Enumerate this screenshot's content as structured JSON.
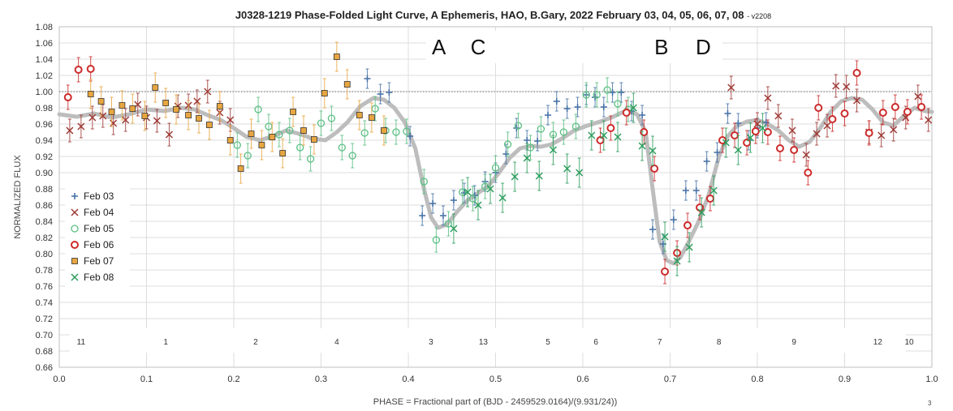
{
  "chart_data": {
    "type": "scatter",
    "title": "J0328-1219 Phase-Folded Light Curve, A Ephemeris, HAO, B.Gary, 2022 February 03, 04, 05, 06, 07, 08",
    "title_suffix": "- v2208",
    "xlabel": "PHASE = Fractional part of (BJD - 2459529.0164)/(9.931/24))",
    "ylabel": "NORMALIZED FLUX",
    "xlim": [
      0.0,
      1.0
    ],
    "ylim": [
      0.66,
      1.08
    ],
    "xticks": [
      "0.0",
      "0.1",
      "0.2",
      "0.3",
      "0.4",
      "0.5",
      "0.6",
      "0.7",
      "0.8",
      "0.9",
      "1.0"
    ],
    "yticks": [
      "0.66",
      "0.68",
      "0.70",
      "0.72",
      "0.74",
      "0.76",
      "0.78",
      "0.80",
      "0.82",
      "0.84",
      "0.86",
      "0.88",
      "0.90",
      "0.92",
      "0.94",
      "0.96",
      "0.98",
      "1.00",
      "1.02",
      "1.04",
      "1.06",
      "1.08"
    ],
    "grid": true,
    "legend_position": "left",
    "reference_line": 1.0,
    "dip_labels": [
      {
        "text": "A",
        "x": 0.435,
        "y": 1.055
      },
      {
        "text": "C",
        "x": 0.48,
        "y": 1.055
      },
      {
        "text": "B",
        "x": 0.69,
        "y": 1.055
      },
      {
        "text": "D",
        "x": 0.738,
        "y": 1.055
      }
    ],
    "segment_labels": [
      {
        "text": "11",
        "x": 0.025
      },
      {
        "text": "1",
        "x": 0.122
      },
      {
        "text": "2",
        "x": 0.225
      },
      {
        "text": "4",
        "x": 0.318
      },
      {
        "text": "3",
        "x": 0.426
      },
      {
        "text": "13",
        "x": 0.486
      },
      {
        "text": "5",
        "x": 0.56
      },
      {
        "text": "6",
        "x": 0.615
      },
      {
        "text": "7",
        "x": 0.688
      },
      {
        "text": "8",
        "x": 0.756
      },
      {
        "text": "9",
        "x": 0.842
      },
      {
        "text": "12",
        "x": 0.938
      },
      {
        "text": "10",
        "x": 0.974
      }
    ],
    "series": [
      {
        "name": "Feb 03",
        "marker": "plus",
        "color": "#4a74a8",
        "points": [
          [
            0.353,
            1.016
          ],
          [
            0.368,
            0.997
          ],
          [
            0.378,
            0.999
          ],
          [
            0.402,
            0.945
          ],
          [
            0.416,
            0.847
          ],
          [
            0.428,
            0.862
          ],
          [
            0.44,
            0.847
          ],
          [
            0.452,
            0.866
          ],
          [
            0.464,
            0.875
          ],
          [
            0.476,
            0.872
          ],
          [
            0.488,
            0.889
          ],
          [
            0.5,
            0.9
          ],
          [
            0.512,
            0.923
          ],
          [
            0.524,
            0.955
          ],
          [
            0.536,
            0.94
          ],
          [
            0.548,
            0.939
          ],
          [
            0.56,
            0.971
          ],
          [
            0.57,
            0.988
          ],
          [
            0.582,
            0.979
          ],
          [
            0.594,
            0.981
          ],
          [
            0.604,
            0.996
          ],
          [
            0.614,
            0.993
          ],
          [
            0.624,
            0.981
          ],
          [
            0.634,
            0.999
          ],
          [
            0.644,
            0.999
          ],
          [
            0.656,
            0.976
          ],
          [
            0.668,
            0.971
          ],
          [
            0.68,
            0.83
          ],
          [
            0.692,
            0.812
          ],
          [
            0.704,
            0.842
          ],
          [
            0.718,
            0.878
          ],
          [
            0.73,
            0.878
          ],
          [
            0.742,
            0.914
          ],
          [
            0.754,
            0.925
          ],
          [
            0.766,
            0.973
          ],
          [
            0.778,
            0.961
          ],
          [
            0.79,
            0.94
          ],
          [
            0.8,
            0.955
          ],
          [
            0.81,
            0.962
          ]
        ],
        "err": 0.012
      },
      {
        "name": "Feb 04",
        "marker": "x",
        "color": "#9e3a36",
        "points": [
          [
            0.012,
            0.952
          ],
          [
            0.025,
            0.957
          ],
          [
            0.038,
            0.968
          ],
          [
            0.05,
            0.97
          ],
          [
            0.062,
            0.961
          ],
          [
            0.076,
            0.965
          ],
          [
            0.09,
            0.984
          ],
          [
            0.1,
            0.968
          ],
          [
            0.112,
            0.964
          ],
          [
            0.126,
            0.947
          ],
          [
            0.136,
            0.982
          ],
          [
            0.148,
            0.983
          ],
          [
            0.158,
            0.988
          ],
          [
            0.17,
            1.0
          ],
          [
            0.184,
            0.974
          ],
          [
            0.196,
            0.965
          ],
          [
            0.77,
            1.005
          ],
          [
            0.8,
            0.96
          ],
          [
            0.812,
            0.992
          ],
          [
            0.824,
            0.97
          ],
          [
            0.84,
            0.952
          ],
          [
            0.856,
            0.922
          ],
          [
            0.868,
            0.948
          ],
          [
            0.88,
            0.958
          ],
          [
            0.89,
            1.007
          ],
          [
            0.902,
            1.006
          ],
          [
            0.914,
            0.989
          ],
          [
            0.928,
            0.95
          ],
          [
            0.942,
            0.946
          ],
          [
            0.956,
            0.953
          ],
          [
            0.97,
            0.968
          ],
          [
            0.984,
            0.994
          ],
          [
            0.996,
            0.965
          ]
        ],
        "err": 0.014
      },
      {
        "name": "Feb 05",
        "marker": "circle",
        "color": "#5cbf84",
        "points": [
          [
            0.204,
            0.934
          ],
          [
            0.216,
            0.921
          ],
          [
            0.228,
            0.978
          ],
          [
            0.24,
            0.957
          ],
          [
            0.252,
            0.947
          ],
          [
            0.264,
            0.952
          ],
          [
            0.276,
            0.931
          ],
          [
            0.288,
            0.917
          ],
          [
            0.3,
            0.961
          ],
          [
            0.312,
            0.967
          ],
          [
            0.324,
            0.931
          ],
          [
            0.336,
            0.921
          ],
          [
            0.35,
            0.949
          ],
          [
            0.362,
            0.979
          ],
          [
            0.374,
            0.952
          ],
          [
            0.386,
            0.95
          ],
          [
            0.398,
            0.951
          ],
          [
            0.418,
            0.889
          ],
          [
            0.432,
            0.817
          ],
          [
            0.446,
            0.837
          ],
          [
            0.462,
            0.876
          ],
          [
            0.474,
            0.868
          ],
          [
            0.488,
            0.883
          ],
          [
            0.5,
            0.906
          ],
          [
            0.514,
            0.935
          ],
          [
            0.526,
            0.958
          ],
          [
            0.54,
            0.931
          ],
          [
            0.552,
            0.954
          ],
          [
            0.566,
            0.947
          ],
          [
            0.578,
            0.95
          ],
          [
            0.592,
            0.957
          ],
          [
            0.604,
            0.996
          ],
          [
            0.616,
            0.996
          ],
          [
            0.628,
            1.002
          ],
          [
            0.64,
            0.985
          ],
          [
            0.652,
            0.978
          ]
        ],
        "err": 0.015
      },
      {
        "name": "Feb 06",
        "marker": "ring",
        "color": "#cc2b2b",
        "points": [
          [
            0.01,
            0.993
          ],
          [
            0.022,
            1.027
          ],
          [
            0.036,
            1.028
          ],
          [
            0.62,
            0.94
          ],
          [
            0.632,
            0.955
          ],
          [
            0.65,
            0.974
          ],
          [
            0.67,
            0.95
          ],
          [
            0.682,
            0.905
          ],
          [
            0.694,
            0.778
          ],
          [
            0.708,
            0.801
          ],
          [
            0.72,
            0.835
          ],
          [
            0.734,
            0.857
          ],
          [
            0.746,
            0.868
          ],
          [
            0.76,
            0.94
          ],
          [
            0.774,
            0.946
          ],
          [
            0.788,
            0.937
          ],
          [
            0.798,
            0.951
          ],
          [
            0.812,
            0.95
          ],
          [
            0.826,
            0.93
          ],
          [
            0.842,
            0.928
          ],
          [
            0.858,
            0.9
          ],
          [
            0.87,
            0.98
          ],
          [
            0.886,
            0.966
          ],
          [
            0.9,
            0.973
          ],
          [
            0.914,
            1.023
          ],
          [
            0.928,
            0.949
          ],
          [
            0.944,
            0.974
          ],
          [
            0.958,
            0.981
          ],
          [
            0.972,
            0.975
          ],
          [
            0.988,
            0.981
          ]
        ],
        "err": 0.015
      },
      {
        "name": "Feb 07",
        "marker": "square",
        "color": "#e8a640",
        "points": [
          [
            0.036,
            0.997
          ],
          [
            0.048,
            0.988
          ],
          [
            0.06,
            0.975
          ],
          [
            0.072,
            0.983
          ],
          [
            0.084,
            0.979
          ],
          [
            0.098,
            0.97
          ],
          [
            0.11,
            1.005
          ],
          [
            0.122,
            0.986
          ],
          [
            0.134,
            0.978
          ],
          [
            0.148,
            0.971
          ],
          [
            0.16,
            0.967
          ],
          [
            0.172,
            0.959
          ],
          [
            0.184,
            0.982
          ],
          [
            0.196,
            0.94
          ],
          [
            0.208,
            0.905
          ],
          [
            0.22,
            0.948
          ],
          [
            0.232,
            0.934
          ],
          [
            0.244,
            0.944
          ],
          [
            0.256,
            0.924
          ],
          [
            0.268,
            0.975
          ],
          [
            0.28,
            0.952
          ],
          [
            0.292,
            0.941
          ],
          [
            0.304,
            0.998
          ],
          [
            0.318,
            1.043
          ],
          [
            0.33,
            1.009
          ],
          [
            0.344,
            0.971
          ],
          [
            0.358,
            0.968
          ],
          [
            0.372,
            0.952
          ]
        ],
        "err": 0.018
      },
      {
        "name": "Feb 08",
        "marker": "x",
        "color": "#2e9e5e",
        "points": [
          [
            0.452,
            0.831
          ],
          [
            0.468,
            0.876
          ],
          [
            0.48,
            0.86
          ],
          [
            0.494,
            0.88
          ],
          [
            0.508,
            0.869
          ],
          [
            0.522,
            0.895
          ],
          [
            0.536,
            0.918
          ],
          [
            0.55,
            0.896
          ],
          [
            0.566,
            0.928
          ],
          [
            0.582,
            0.905
          ],
          [
            0.596,
            0.9
          ],
          [
            0.61,
            0.946
          ],
          [
            0.624,
            0.946
          ],
          [
            0.64,
            0.944
          ],
          [
            0.658,
            0.98
          ],
          [
            0.668,
            0.933
          ],
          [
            0.68,
            0.927
          ],
          [
            0.694,
            0.821
          ],
          [
            0.708,
            0.791
          ],
          [
            0.722,
            0.808
          ],
          [
            0.736,
            0.851
          ],
          [
            0.75,
            0.878
          ],
          [
            0.764,
            0.937
          ],
          [
            0.778,
            0.928
          ],
          [
            0.792,
            0.943
          ],
          [
            0.806,
            0.955
          ]
        ],
        "err": 0.018
      }
    ],
    "model_curve": [
      [
        0.0,
        0.972
      ],
      [
        0.02,
        0.969
      ],
      [
        0.04,
        0.973
      ],
      [
        0.06,
        0.968
      ],
      [
        0.08,
        0.972
      ],
      [
        0.1,
        0.978
      ],
      [
        0.12,
        0.976
      ],
      [
        0.14,
        0.98
      ],
      [
        0.155,
        0.978
      ],
      [
        0.17,
        0.971
      ],
      [
        0.185,
        0.965
      ],
      [
        0.2,
        0.955
      ],
      [
        0.215,
        0.944
      ],
      [
        0.23,
        0.94
      ],
      [
        0.245,
        0.945
      ],
      [
        0.26,
        0.952
      ],
      [
        0.275,
        0.948
      ],
      [
        0.29,
        0.942
      ],
      [
        0.305,
        0.94
      ],
      [
        0.318,
        0.95
      ],
      [
        0.33,
        0.962
      ],
      [
        0.345,
        0.982
      ],
      [
        0.36,
        0.992
      ],
      [
        0.372,
        0.99
      ],
      [
        0.384,
        0.98
      ],
      [
        0.396,
        0.962
      ],
      [
        0.408,
        0.93
      ],
      [
        0.418,
        0.88
      ],
      [
        0.426,
        0.845
      ],
      [
        0.434,
        0.832
      ],
      [
        0.444,
        0.836
      ],
      [
        0.456,
        0.852
      ],
      [
        0.468,
        0.866
      ],
      [
        0.48,
        0.875
      ],
      [
        0.492,
        0.884
      ],
      [
        0.504,
        0.9
      ],
      [
        0.516,
        0.918
      ],
      [
        0.528,
        0.93
      ],
      [
        0.54,
        0.933
      ],
      [
        0.552,
        0.932
      ],
      [
        0.564,
        0.935
      ],
      [
        0.576,
        0.942
      ],
      [
        0.59,
        0.952
      ],
      [
        0.605,
        0.958
      ],
      [
        0.62,
        0.963
      ],
      [
        0.635,
        0.969
      ],
      [
        0.65,
        0.977
      ],
      [
        0.662,
        0.972
      ],
      [
        0.672,
        0.95
      ],
      [
        0.68,
        0.88
      ],
      [
        0.688,
        0.815
      ],
      [
        0.696,
        0.792
      ],
      [
        0.704,
        0.788
      ],
      [
        0.712,
        0.796
      ],
      [
        0.72,
        0.812
      ],
      [
        0.732,
        0.838
      ],
      [
        0.744,
        0.872
      ],
      [
        0.756,
        0.92
      ],
      [
        0.766,
        0.945
      ],
      [
        0.776,
        0.957
      ],
      [
        0.788,
        0.963
      ],
      [
        0.8,
        0.965
      ],
      [
        0.812,
        0.96
      ],
      [
        0.824,
        0.952
      ],
      [
        0.836,
        0.94
      ],
      [
        0.848,
        0.932
      ],
      [
        0.86,
        0.938
      ],
      [
        0.872,
        0.955
      ],
      [
        0.884,
        0.975
      ],
      [
        0.896,
        0.988
      ],
      [
        0.908,
        0.992
      ],
      [
        0.92,
        0.99
      ],
      [
        0.932,
        0.978
      ],
      [
        0.944,
        0.962
      ],
      [
        0.956,
        0.958
      ],
      [
        0.968,
        0.97
      ],
      [
        0.98,
        0.98
      ],
      [
        0.992,
        0.976
      ],
      [
        1.0,
        0.975
      ]
    ]
  },
  "page_number": "3"
}
